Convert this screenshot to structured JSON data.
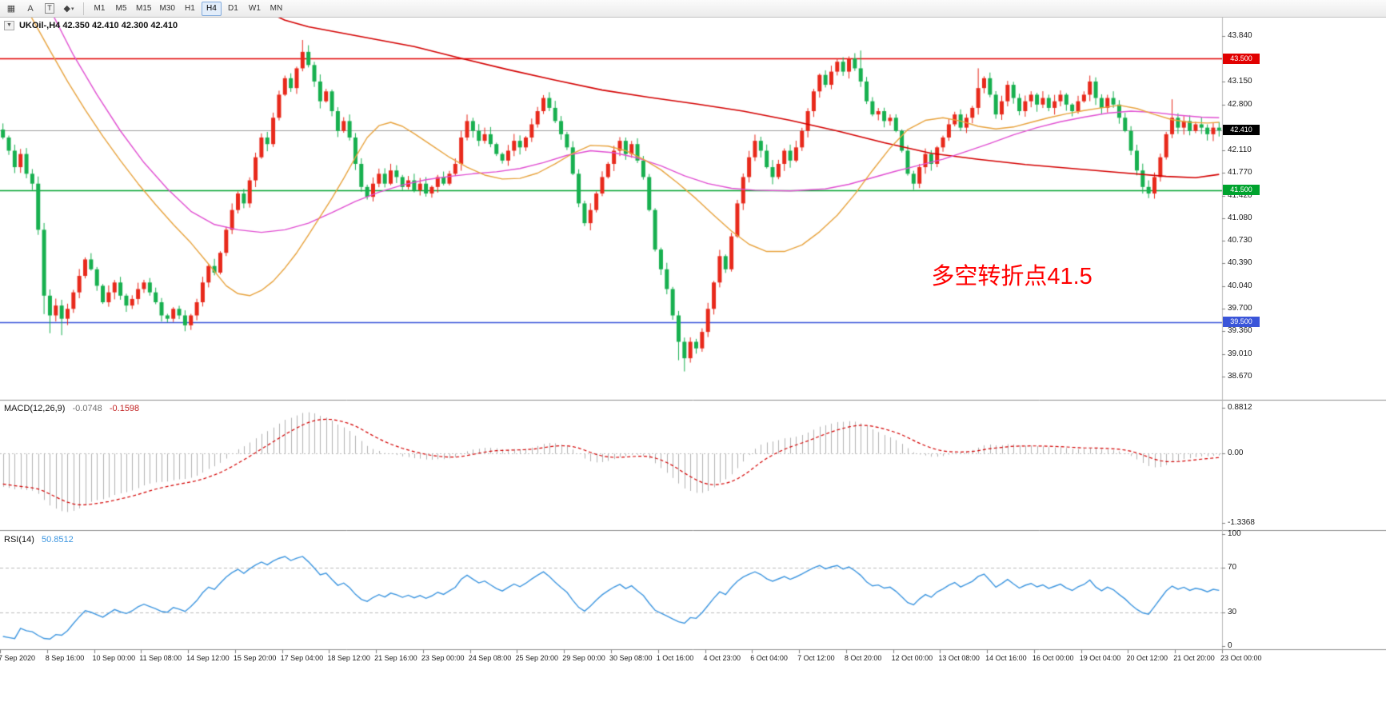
{
  "toolbar": {
    "tools": [
      {
        "name": "chart-list-icon",
        "glyph": "▦"
      },
      {
        "name": "annotate-icon",
        "glyph": "A"
      },
      {
        "name": "text-tool-icon",
        "glyph": "T"
      },
      {
        "name": "shapes-tool-icon",
        "glyph": "◆",
        "caret": "▾"
      }
    ],
    "timeframes": [
      {
        "label": "M1",
        "active": false
      },
      {
        "label": "M5",
        "active": false
      },
      {
        "label": "M15",
        "active": false
      },
      {
        "label": "M30",
        "active": false
      },
      {
        "label": "H1",
        "active": false
      },
      {
        "label": "H4",
        "active": true
      },
      {
        "label": "D1",
        "active": false
      },
      {
        "label": "W1",
        "active": false
      },
      {
        "label": "MN",
        "active": false
      }
    ]
  },
  "chart": {
    "collapse_glyph": "▼",
    "symbol_line": "UKOil-,H4 42.350 42.410 42.300 42.410",
    "scale": {
      "max": 44.12,
      "min": 38.32
    },
    "hlines": [
      {
        "price": 43.5,
        "label": "43.500",
        "color": "#e10000"
      },
      {
        "price": 41.5,
        "label": "41.500",
        "color": "#00a32e"
      },
      {
        "price": 39.5,
        "label": "39.500",
        "color": "#3a55d9"
      }
    ],
    "current": {
      "price": 42.41,
      "label": "42.410",
      "line_color": "#a0a0a0",
      "tag_bg": "#000000"
    },
    "price_axis": {
      "labels": [
        "43.840",
        "43.150",
        "42.800",
        "42.110",
        "41.770",
        "41.420",
        "41.080",
        "40.730",
        "40.390",
        "40.040",
        "39.700",
        "39.360",
        "39.010",
        "38.670"
      ],
      "tags": [
        {
          "label": "43.500",
          "price": 43.5,
          "bg": "#e10000"
        },
        {
          "label": "42.410",
          "price": 42.41,
          "bg": "#000000"
        },
        {
          "label": "41.500",
          "price": 41.5,
          "bg": "#00a32e"
        },
        {
          "label": "39.500",
          "price": 39.5,
          "bg": "#3a55d9"
        }
      ]
    },
    "annotation": {
      "text": "多空转折点41.5",
      "color": "#ff0000",
      "font_size": 29,
      "bar": 158,
      "price": 40.48
    }
  },
  "macd": {
    "label": "MACD(12,26,9)",
    "value_main": "-0.0748",
    "value_signal": "-0.1598",
    "scale": {
      "max": 0.8812,
      "min": -1.3368
    },
    "axis": [
      {
        "label": "0.8812",
        "value": 0.8812
      },
      {
        "label": "0.00",
        "value": 0
      },
      {
        "label": "-1.3368",
        "value": -1.3368
      }
    ],
    "histogram_color": "#b2b2b2",
    "signal_color": "#d40000"
  },
  "rsi": {
    "label": "RSI(14)",
    "value": "50.8512",
    "color": "#3d96e0",
    "scale": {
      "max": 100,
      "min": 0
    },
    "levels": [
      70,
      30
    ],
    "axis": [
      "100",
      "70",
      "30",
      "0"
    ]
  },
  "time_axis": {
    "labels": [
      {
        "bar": 0,
        "text": "7 Sep 2020"
      },
      {
        "bar": 8,
        "text": "8 Sep 16:00"
      },
      {
        "bar": 16,
        "text": "10 Sep 00:00"
      },
      {
        "bar": 24,
        "text": "11 Sep 08:00"
      },
      {
        "bar": 32,
        "text": "14 Sep 12:00"
      },
      {
        "bar": 40,
        "text": "15 Sep 20:00"
      },
      {
        "bar": 48,
        "text": "17 Sep 04:00"
      },
      {
        "bar": 56,
        "text": "18 Sep 12:00"
      },
      {
        "bar": 64,
        "text": "21 Sep 16:00"
      },
      {
        "bar": 72,
        "text": "23 Sep 00:00"
      },
      {
        "bar": 80,
        "text": "24 Sep 08:00"
      },
      {
        "bar": 88,
        "text": "25 Sep 20:00"
      },
      {
        "bar": 96,
        "text": "29 Sep 00:00"
      },
      {
        "bar": 104,
        "text": "30 Sep 08:00"
      },
      {
        "bar": 112,
        "text": "1 Oct 16:00"
      },
      {
        "bar": 120,
        "text": "4 Oct 23:00"
      },
      {
        "bar": 128,
        "text": "6 Oct 04:00"
      },
      {
        "bar": 136,
        "text": "7 Oct 12:00"
      },
      {
        "bar": 144,
        "text": "8 Oct 20:00"
      },
      {
        "bar": 152,
        "text": "12 Oct 00:00"
      },
      {
        "bar": 160,
        "text": "13 Oct 08:00"
      },
      {
        "bar": 168,
        "text": "14 Oct 16:00"
      },
      {
        "bar": 176,
        "text": "16 Oct 00:00"
      },
      {
        "bar": 184,
        "text": "19 Oct 04:00"
      },
      {
        "bar": 192,
        "text": "20 Oct 12:00"
      },
      {
        "bar": 200,
        "text": "21 Oct 20:00"
      },
      {
        "bar": 208,
        "text": "23 Oct 00:00"
      }
    ]
  },
  "chart_data": {
    "type": "candlestick",
    "symbol": "UKOil-",
    "timeframe": "H4",
    "bars": 208,
    "first_open": 42.42,
    "colors": {
      "up": "#e8291b",
      "down": "#17b04f"
    },
    "closes": [
      42.3,
      42.1,
      41.85,
      42.05,
      41.75,
      41.6,
      40.9,
      39.9,
      39.6,
      39.75,
      39.55,
      39.7,
      39.95,
      40.2,
      40.45,
      40.3,
      40.05,
      39.8,
      39.95,
      40.1,
      39.9,
      39.75,
      39.85,
      40.0,
      40.1,
      39.95,
      39.8,
      39.6,
      39.55,
      39.7,
      39.6,
      39.45,
      39.6,
      39.8,
      40.1,
      40.35,
      40.25,
      40.55,
      40.9,
      41.2,
      41.45,
      41.3,
      41.65,
      42.0,
      42.3,
      42.2,
      42.6,
      42.95,
      43.2,
      43.05,
      43.35,
      43.6,
      43.4,
      43.15,
      42.85,
      43.0,
      42.7,
      42.4,
      42.55,
      42.3,
      41.9,
      41.55,
      41.4,
      41.6,
      41.75,
      41.6,
      41.8,
      41.7,
      41.55,
      41.65,
      41.5,
      41.6,
      41.45,
      41.55,
      41.7,
      41.6,
      41.75,
      41.9,
      42.3,
      42.55,
      42.4,
      42.25,
      42.35,
      42.2,
      42.05,
      41.95,
      42.1,
      42.25,
      42.15,
      42.3,
      42.5,
      42.7,
      42.9,
      42.75,
      42.55,
      42.35,
      42.15,
      41.75,
      41.3,
      41.0,
      41.2,
      41.45,
      41.7,
      41.9,
      42.1,
      42.25,
      42.05,
      42.2,
      41.95,
      41.7,
      41.2,
      40.6,
      40.3,
      40.0,
      39.6,
      39.2,
      38.95,
      39.2,
      39.1,
      39.35,
      39.7,
      40.1,
      40.5,
      40.3,
      40.8,
      41.3,
      41.7,
      42.0,
      42.25,
      42.1,
      41.85,
      41.7,
      41.9,
      42.1,
      41.95,
      42.15,
      42.4,
      42.7,
      43.0,
      43.25,
      43.1,
      43.3,
      43.45,
      43.3,
      43.5,
      43.35,
      43.15,
      42.85,
      42.65,
      42.7,
      42.55,
      42.6,
      42.4,
      42.1,
      41.75,
      41.6,
      41.85,
      42.05,
      41.9,
      42.15,
      42.3,
      42.5,
      42.65,
      42.45,
      42.6,
      42.75,
      43.05,
      43.2,
      42.95,
      42.65,
      42.85,
      43.1,
      42.9,
      42.7,
      42.85,
      42.95,
      42.8,
      42.9,
      42.75,
      42.85,
      42.95,
      42.8,
      42.7,
      42.85,
      42.95,
      43.15,
      42.9,
      42.75,
      42.9,
      42.8,
      42.6,
      42.4,
      42.1,
      41.8,
      41.55,
      41.45,
      41.7,
      42.0,
      42.35,
      42.6,
      42.45,
      42.55,
      42.4,
      42.5,
      42.45,
      42.35,
      42.45,
      42.41
    ],
    "warmup_closes": [
      46.0,
      45.92,
      45.96,
      45.8,
      45.7,
      45.76,
      45.6,
      45.5,
      45.56,
      45.4,
      45.3,
      45.2,
      45.26,
      45.1,
      45.0,
      44.9,
      44.8,
      44.86,
      44.7,
      44.56,
      44.6,
      44.4,
      44.3,
      44.16,
      44.2,
      44.0,
      43.86,
      43.7,
      43.76,
      43.56,
      43.4,
      43.3,
      43.36,
      43.16,
      43.0,
      42.86,
      42.9,
      42.7,
      42.56,
      42.42
    ],
    "wick_overrides": {
      "7": {
        "low": 39.62
      },
      "8": {
        "low": 39.33
      },
      "10": {
        "low": 39.3
      },
      "31": {
        "low": 39.36
      },
      "51": {
        "high": 43.78
      },
      "52": {
        "high": 43.7
      },
      "115": {
        "low": 38.92
      },
      "116": {
        "low": 38.75
      },
      "145": {
        "high": 43.58
      },
      "146": {
        "high": 43.62
      },
      "166": {
        "high": 43.35
      },
      "195": {
        "low": 41.38
      },
      "199": {
        "high": 42.88
      }
    },
    "moving_averages": [
      {
        "name": "slow-ma-red",
        "color": "#d40000",
        "width": 1.6,
        "points": [
          [
            40,
            44.45
          ],
          [
            44,
            44.25
          ],
          [
            48,
            44.08
          ],
          [
            52,
            43.98
          ],
          [
            58,
            43.88
          ],
          [
            64,
            43.78
          ],
          [
            70,
            43.68
          ],
          [
            78,
            43.5
          ],
          [
            86,
            43.33
          ],
          [
            94,
            43.17
          ],
          [
            102,
            43.02
          ],
          [
            110,
            42.91
          ],
          [
            118,
            42.81
          ],
          [
            126,
            42.7
          ],
          [
            134,
            42.56
          ],
          [
            142,
            42.4
          ],
          [
            150,
            42.22
          ],
          [
            158,
            42.06
          ],
          [
            166,
            41.97
          ],
          [
            174,
            41.89
          ],
          [
            182,
            41.83
          ],
          [
            190,
            41.77
          ],
          [
            198,
            41.71
          ],
          [
            203,
            41.69
          ],
          [
            207,
            41.74
          ]
        ]
      },
      {
        "name": "medium-ma-magenta",
        "color": "#e14fd2",
        "width": 1.4,
        "points": [
          [
            0,
            45.2
          ],
          [
            4,
            44.85
          ],
          [
            8,
            44.25
          ],
          [
            12,
            43.55
          ],
          [
            16,
            42.95
          ],
          [
            20,
            42.4
          ],
          [
            24,
            41.92
          ],
          [
            28,
            41.52
          ],
          [
            32,
            41.18
          ],
          [
            36,
            40.98
          ],
          [
            40,
            40.9
          ],
          [
            44,
            40.86
          ],
          [
            48,
            40.9
          ],
          [
            52,
            41.0
          ],
          [
            56,
            41.16
          ],
          [
            60,
            41.33
          ],
          [
            64,
            41.47
          ],
          [
            68,
            41.58
          ],
          [
            72,
            41.66
          ],
          [
            76,
            41.71
          ],
          [
            80,
            41.75
          ],
          [
            84,
            41.78
          ],
          [
            88,
            41.83
          ],
          [
            92,
            41.92
          ],
          [
            96,
            42.03
          ],
          [
            100,
            42.1
          ],
          [
            104,
            42.07
          ],
          [
            108,
            41.99
          ],
          [
            112,
            41.87
          ],
          [
            116,
            41.72
          ],
          [
            120,
            41.6
          ],
          [
            124,
            41.53
          ],
          [
            128,
            41.5
          ],
          [
            134,
            41.49
          ],
          [
            140,
            41.52
          ],
          [
            144,
            41.59
          ],
          [
            148,
            41.69
          ],
          [
            152,
            41.79
          ],
          [
            156,
            41.88
          ],
          [
            160,
            41.97
          ],
          [
            164,
            42.09
          ],
          [
            168,
            42.21
          ],
          [
            172,
            42.34
          ],
          [
            176,
            42.45
          ],
          [
            180,
            42.54
          ],
          [
            184,
            42.61
          ],
          [
            188,
            42.67
          ],
          [
            192,
            42.7
          ],
          [
            196,
            42.68
          ],
          [
            200,
            42.64
          ],
          [
            204,
            42.61
          ],
          [
            207,
            42.6
          ]
        ]
      },
      {
        "name": "fast-ma-orange",
        "color": "#e8a33d",
        "width": 1.4,
        "points": [
          [
            2,
            44.6
          ],
          [
            5,
            44.1
          ],
          [
            8,
            43.62
          ],
          [
            11,
            43.15
          ],
          [
            14,
            42.72
          ],
          [
            17,
            42.32
          ],
          [
            20,
            41.95
          ],
          [
            23,
            41.6
          ],
          [
            26,
            41.28
          ],
          [
            29,
            40.98
          ],
          [
            32,
            40.7
          ],
          [
            35,
            40.38
          ],
          [
            38,
            40.05
          ],
          [
            40,
            39.93
          ],
          [
            42,
            39.9
          ],
          [
            44,
            39.98
          ],
          [
            46,
            40.12
          ],
          [
            48,
            40.32
          ],
          [
            50,
            40.55
          ],
          [
            52,
            40.82
          ],
          [
            54,
            41.1
          ],
          [
            56,
            41.38
          ],
          [
            58,
            41.68
          ],
          [
            60,
            42.0
          ],
          [
            62,
            42.3
          ],
          [
            64,
            42.48
          ],
          [
            66,
            42.53
          ],
          [
            68,
            42.47
          ],
          [
            70,
            42.36
          ],
          [
            73,
            42.18
          ],
          [
            76,
            42.0
          ],
          [
            79,
            41.85
          ],
          [
            82,
            41.73
          ],
          [
            85,
            41.67
          ],
          [
            88,
            41.68
          ],
          [
            91,
            41.76
          ],
          [
            94,
            41.9
          ],
          [
            97,
            42.06
          ],
          [
            100,
            42.18
          ],
          [
            103,
            42.17
          ],
          [
            106,
            42.1
          ],
          [
            109,
            41.97
          ],
          [
            112,
            41.81
          ],
          [
            115,
            41.6
          ],
          [
            118,
            41.37
          ],
          [
            121,
            41.12
          ],
          [
            124,
            40.88
          ],
          [
            127,
            40.68
          ],
          [
            130,
            40.57
          ],
          [
            133,
            40.57
          ],
          [
            136,
            40.67
          ],
          [
            139,
            40.87
          ],
          [
            142,
            41.12
          ],
          [
            145,
            41.44
          ],
          [
            148,
            41.8
          ],
          [
            151,
            42.14
          ],
          [
            154,
            42.42
          ],
          [
            157,
            42.56
          ],
          [
            160,
            42.6
          ],
          [
            163,
            42.55
          ],
          [
            166,
            42.47
          ],
          [
            169,
            42.43
          ],
          [
            172,
            42.46
          ],
          [
            175,
            42.53
          ],
          [
            178,
            42.6
          ],
          [
            181,
            42.66
          ],
          [
            184,
            42.71
          ],
          [
            187,
            42.75
          ],
          [
            190,
            42.79
          ],
          [
            193,
            42.74
          ],
          [
            196,
            42.65
          ],
          [
            199,
            42.57
          ],
          [
            202,
            42.53
          ],
          [
            205,
            42.52
          ],
          [
            207,
            42.53
          ]
        ]
      }
    ]
  }
}
